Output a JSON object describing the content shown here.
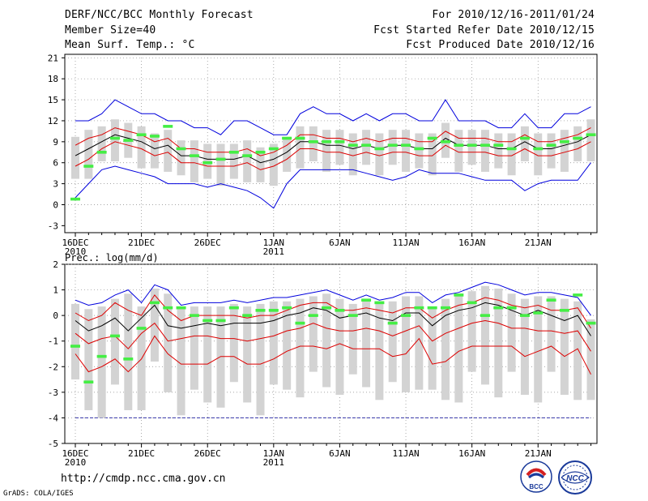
{
  "header": {
    "title": "DERF/NCC/BCC Monthly Forecast",
    "member": "Member Size=40",
    "variable": "Mean Surf. Temp.: °C",
    "period": "For 2010/12/16-2011/01/24",
    "started": "Fcst Started Refer Date 2010/12/15",
    "produced": "Fcst Produced Date 2010/12/16"
  },
  "footer": {
    "url": "http://cmdp.ncc.cma.gov.cn",
    "credit": "GrADS: COLA/IGES"
  },
  "logos": {
    "bcc": "BCC",
    "ncc": "NCC"
  },
  "chart_data": [
    {
      "type": "box+line",
      "title": "Mean Surf. Temp.: °C",
      "x_tick_labels": [
        "16DEC",
        "21DEC",
        "26DEC",
        "1JAN",
        "6JAN",
        "11JAN",
        "16JAN",
        "21JAN"
      ],
      "x_year_labels": [
        "2010",
        "2011"
      ],
      "y_ticks": [
        -3,
        0,
        3,
        6,
        9,
        12,
        15,
        18,
        21
      ],
      "ylim": [
        -4,
        21.5
      ],
      "days": 40,
      "series": [
        {
          "name": "max",
          "color": "#0000dd",
          "values": [
            12,
            12,
            13,
            15,
            14,
            13,
            13,
            12,
            12,
            11,
            11,
            10,
            12,
            12,
            11,
            10,
            10,
            13,
            14,
            13,
            13,
            12,
            13,
            12,
            13,
            13,
            12,
            12,
            15,
            12,
            12,
            12,
            11,
            11,
            13,
            11,
            11,
            13,
            13,
            14
          ]
        },
        {
          "name": "upper",
          "color": "#dd0000",
          "values": [
            8.5,
            9.5,
            10,
            11,
            10.5,
            10,
            9,
            9.5,
            8,
            8,
            7.5,
            7.5,
            7.5,
            8,
            7,
            7.5,
            8.5,
            10,
            10,
            9.5,
            9.5,
            9,
            9.5,
            9,
            9.5,
            9.5,
            9,
            9,
            10.5,
            9.5,
            9.5,
            9.5,
            9,
            9,
            10,
            9,
            9,
            9.5,
            10,
            11
          ]
        },
        {
          "name": "mean",
          "color": "#000000",
          "values": [
            7,
            8,
            9,
            10,
            9.5,
            9,
            8,
            8.5,
            7,
            7,
            6.5,
            6.5,
            6.5,
            7,
            6,
            6.5,
            7.5,
            9,
            9,
            8.5,
            8.5,
            8,
            8.5,
            8,
            8.5,
            8.5,
            8,
            8,
            9.5,
            8.5,
            8.5,
            8.5,
            8,
            8,
            9,
            8,
            8,
            8.5,
            9,
            10
          ]
        },
        {
          "name": "lower",
          "color": "#dd0000",
          "values": [
            5.5,
            6.5,
            8,
            9,
            8.5,
            8,
            7,
            7.5,
            6,
            6,
            5.5,
            5.5,
            5.5,
            6,
            5,
            5.5,
            6.5,
            8,
            8,
            7.5,
            7.5,
            7,
            7.5,
            7,
            7.5,
            7.5,
            7,
            7,
            8.5,
            7.5,
            7.5,
            7.5,
            7,
            7,
            8,
            7,
            7,
            7.5,
            8,
            9
          ]
        },
        {
          "name": "min",
          "color": "#0000dd",
          "values": [
            1,
            3,
            5,
            5.5,
            5,
            4.5,
            4,
            3,
            3,
            3,
            2.5,
            3,
            2.5,
            2,
            1,
            -0.5,
            3,
            5,
            5,
            5,
            5,
            5,
            4.5,
            4,
            3.5,
            4,
            5,
            4.5,
            4.5,
            4.5,
            4,
            3.5,
            3.5,
            3.5,
            2,
            3,
            3.5,
            3.5,
            3.5,
            6
          ]
        },
        {
          "name": "obs",
          "color": "#44ee44",
          "values": [
            0.8,
            5.5,
            7.5,
            9.5,
            9.2,
            10,
            9.8,
            11.2,
            8,
            7,
            6,
            6.5,
            7.5,
            7,
            7.5,
            8,
            9.5,
            9.5,
            9,
            9,
            9,
            8.5,
            8.5,
            8,
            8.5,
            8.5,
            8,
            9.5,
            9,
            8.5,
            8.5,
            8.5,
            8.5,
            8,
            9.5,
            8,
            8.5,
            9,
            9.5,
            10
          ]
        }
      ]
    },
    {
      "type": "box+line",
      "title": "Prec.: log(mm/d)",
      "x_tick_labels": [
        "16DEC",
        "21DEC",
        "26DEC",
        "1JAN",
        "6JAN",
        "11JAN",
        "16JAN",
        "21JAN"
      ],
      "x_year_labels": [
        "2010",
        "2011"
      ],
      "y_ticks": [
        -5,
        -4,
        -3,
        -2,
        -1,
        0,
        1,
        2
      ],
      "ylim": [
        -5,
        2
      ],
      "floor": -4,
      "days": 40,
      "series": [
        {
          "name": "max",
          "color": "#0000dd",
          "values": [
            0.6,
            0.4,
            0.5,
            0.8,
            1,
            0.5,
            1.2,
            1,
            0.4,
            0.5,
            0.5,
            0.5,
            0.6,
            0.5,
            0.6,
            0.7,
            0.7,
            0.8,
            0.9,
            1,
            0.8,
            0.6,
            0.8,
            0.6,
            0.7,
            0.9,
            0.9,
            0.5,
            0.8,
            0.9,
            1.1,
            1.3,
            1.2,
            1,
            0.8,
            0.9,
            0.9,
            0.8,
            0.7,
            0
          ]
        },
        {
          "name": "upper",
          "color": "#dd0000",
          "values": [
            0.1,
            -0.2,
            0,
            0.5,
            0.2,
            0,
            0.8,
            0.2,
            -0.2,
            0,
            0,
            0,
            0,
            -0.1,
            0,
            0,
            0.2,
            0.4,
            0.5,
            0.5,
            0.2,
            0.2,
            0.3,
            0.2,
            0.1,
            0.3,
            0.3,
            -0.1,
            0.2,
            0.4,
            0.5,
            0.7,
            0.6,
            0.4,
            0.3,
            0.4,
            0.2,
            0.2,
            0.3,
            -0.5
          ]
        },
        {
          "name": "mean",
          "color": "#000000",
          "values": [
            -0.2,
            -0.6,
            -0.4,
            -0.1,
            -0.6,
            -0.1,
            0.4,
            -0.4,
            -0.5,
            -0.4,
            -0.3,
            -0.4,
            -0.3,
            -0.3,
            -0.3,
            -0.2,
            0,
            0.1,
            0.3,
            0.2,
            -0.1,
            0,
            0.1,
            -0.1,
            -0.2,
            0.1,
            0.1,
            -0.4,
            0,
            0.2,
            0.3,
            0.5,
            0.4,
            0.2,
            0,
            0.2,
            0,
            -0.2,
            0,
            -0.8
          ]
        },
        {
          "name": "lower",
          "color": "#dd0000",
          "values": [
            -0.7,
            -1.1,
            -0.9,
            -0.8,
            -1.3,
            -0.7,
            -0.3,
            -1,
            -0.9,
            -0.8,
            -0.8,
            -0.9,
            -0.9,
            -1,
            -0.9,
            -0.8,
            -0.6,
            -0.5,
            -0.3,
            -0.5,
            -0.6,
            -0.6,
            -0.5,
            -0.6,
            -0.8,
            -0.6,
            -0.4,
            -1,
            -0.7,
            -0.5,
            -0.3,
            -0.2,
            -0.3,
            -0.5,
            -0.5,
            -0.6,
            -0.6,
            -0.7,
            -0.6,
            -1.4
          ]
        },
        {
          "name": "min",
          "color": "#dd0000",
          "values": [
            -1.5,
            -2.2,
            -2,
            -1.7,
            -2.2,
            -1.7,
            -0.8,
            -1.5,
            -1.9,
            -1.9,
            -1.9,
            -1.6,
            -1.6,
            -1.9,
            -1.9,
            -1.7,
            -1.4,
            -1.2,
            -1.2,
            -1.3,
            -1.1,
            -1.3,
            -1.3,
            -1.3,
            -1.6,
            -1.5,
            -0.9,
            -1.9,
            -1.8,
            -1.4,
            -1.2,
            -1.2,
            -1.2,
            -1.2,
            -1.6,
            -1.4,
            -1.2,
            -1.6,
            -1.3,
            -2.3
          ]
        },
        {
          "name": "obs",
          "color": "#44ee44",
          "values": [
            -1.2,
            -2.6,
            -1.6,
            -0.8,
            -1.7,
            -0.5,
            0.5,
            0.3,
            0.3,
            0,
            -0.2,
            -0.2,
            0.3,
            0,
            0.2,
            0.2,
            0.3,
            -0.3,
            0,
            0.3,
            0.2,
            0,
            0.6,
            0.5,
            -0.3,
            0,
            0.3,
            0.3,
            0.3,
            0.8,
            0.5,
            0,
            0.3,
            0.3,
            0,
            0.1,
            0.6,
            0.2,
            0.8,
            -0.3
          ]
        }
      ]
    }
  ]
}
